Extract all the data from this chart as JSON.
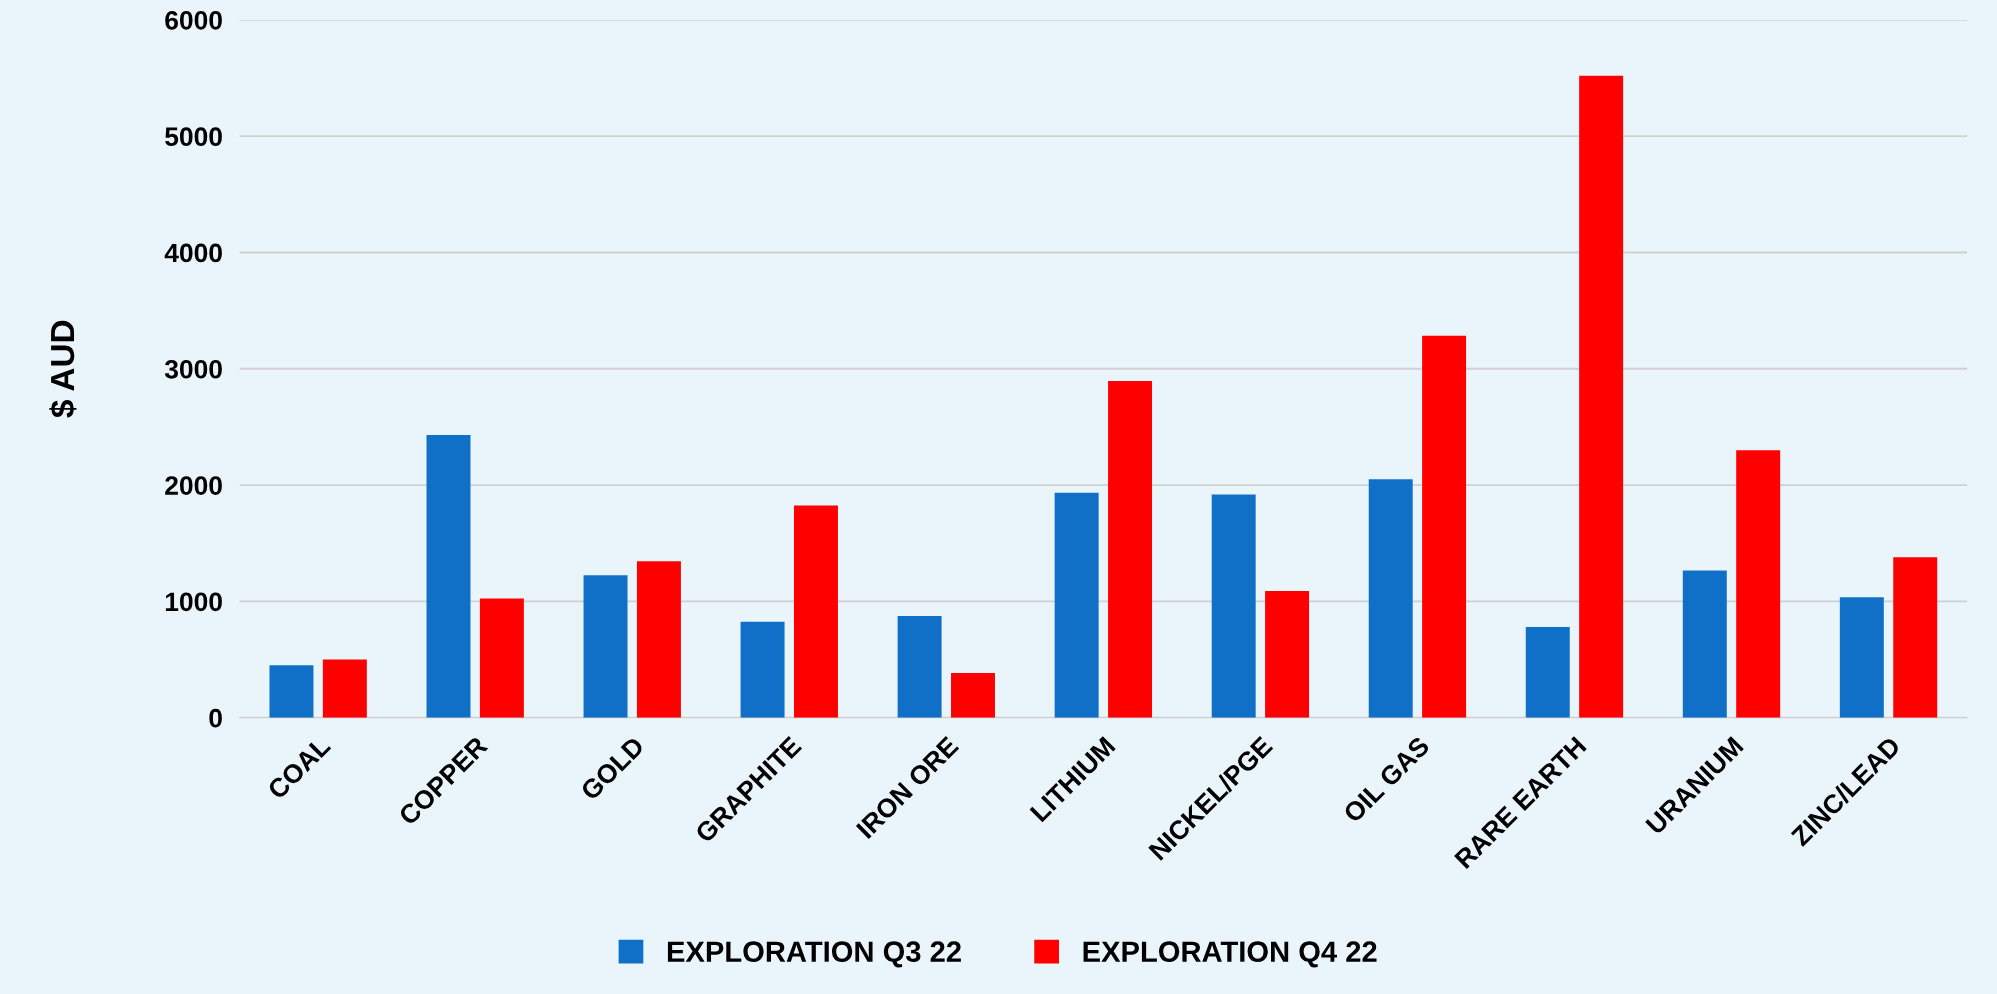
{
  "chart_data": {
    "type": "bar",
    "ylabel": "$ AUD",
    "categories": [
      "COAL",
      "COPPER",
      "GOLD",
      "GRAPHITE",
      "IRON ORE",
      "LITHIUM",
      "NICKEL/PGE",
      "OIL GAS",
      "RARE EARTH",
      "URANIUM",
      "ZINC/LEAD"
    ],
    "series": [
      {
        "name": "EXPLORATION Q3 22",
        "color": "#1070c8",
        "values": [
          450,
          2430,
          1225,
          825,
          875,
          1935,
          1920,
          2050,
          780,
          1265,
          1035
        ]
      },
      {
        "name": "EXPLORATION Q4 22",
        "color": "#ff0000",
        "values": [
          500,
          1025,
          1345,
          1825,
          385,
          2895,
          1090,
          3285,
          5520,
          2300,
          1380
        ]
      }
    ],
    "ylim": [
      0,
      6000
    ],
    "yticks": [
      0,
      1000,
      2000,
      3000,
      4000,
      5000,
      6000
    ],
    "grid": "y",
    "legend": "bottom"
  }
}
